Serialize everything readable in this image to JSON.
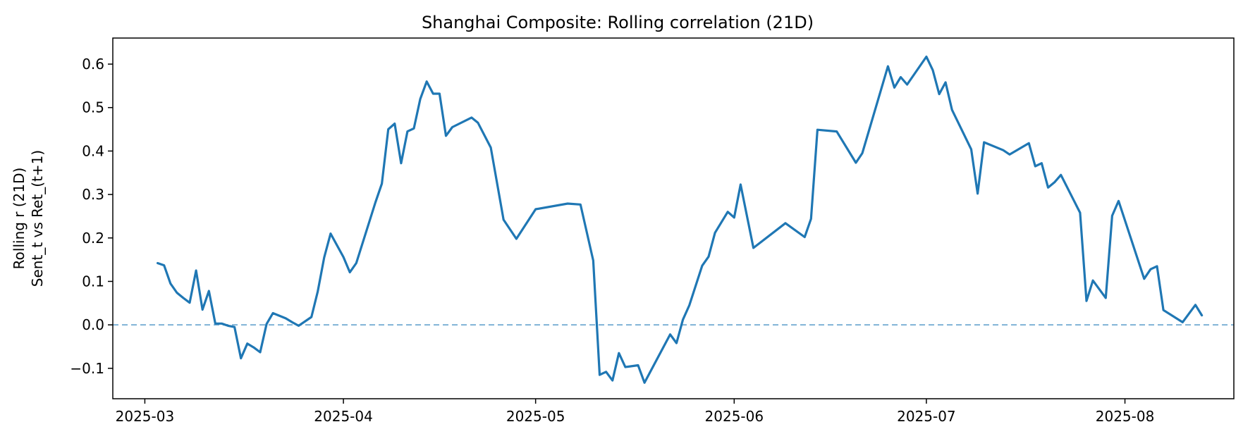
{
  "chart_data": {
    "type": "line",
    "title": "Shanghai Composite: Rolling correlation (21D)",
    "xlabel": "",
    "ylabel_lines": [
      "Rolling r (21D)",
      "Sent_t vs Ret_(t+1)"
    ],
    "xlim": [
      "2025-02-24",
      "2025-08-18"
    ],
    "ylim": [
      -0.17,
      0.66
    ],
    "x_ticks": [
      {
        "date": "2025-03-01",
        "label": "2025-03"
      },
      {
        "date": "2025-04-01",
        "label": "2025-04"
      },
      {
        "date": "2025-05-01",
        "label": "2025-05"
      },
      {
        "date": "2025-06-01",
        "label": "2025-06"
      },
      {
        "date": "2025-07-01",
        "label": "2025-07"
      },
      {
        "date": "2025-08-01",
        "label": "2025-08"
      }
    ],
    "y_ticks": [
      {
        "value": -0.1,
        "label": "−0.1"
      },
      {
        "value": 0.0,
        "label": "0.0"
      },
      {
        "value": 0.1,
        "label": "0.1"
      },
      {
        "value": 0.2,
        "label": "0.2"
      },
      {
        "value": 0.3,
        "label": "0.3"
      },
      {
        "value": 0.4,
        "label": "0.4"
      },
      {
        "value": 0.5,
        "label": "0.5"
      },
      {
        "value": 0.6,
        "label": "0.6"
      }
    ],
    "grid": false,
    "reference_line": {
      "y": 0.0,
      "style": "dashed",
      "color": "#7fb2d6"
    },
    "line_color": "#1f77b4",
    "series": [
      {
        "points": [
          [
            "2025-03-03",
            0.142
          ],
          [
            "2025-03-04",
            0.137
          ],
          [
            "2025-03-05",
            0.095
          ],
          [
            "2025-03-06",
            0.074
          ],
          [
            "2025-03-07",
            0.062
          ],
          [
            "2025-03-08",
            0.051
          ],
          [
            "2025-03-09",
            0.125
          ],
          [
            "2025-03-10",
            0.035
          ],
          [
            "2025-03-11",
            0.078
          ],
          [
            "2025-03-12",
            0.003
          ],
          [
            "2025-03-13",
            0.003
          ],
          [
            "2025-03-14",
            -0.002
          ],
          [
            "2025-03-15",
            -0.005
          ],
          [
            "2025-03-16",
            -0.077
          ],
          [
            "2025-03-17",
            -0.043
          ],
          [
            "2025-03-18",
            -0.052
          ],
          [
            "2025-03-19",
            -0.063
          ],
          [
            "2025-03-20",
            0.002
          ],
          [
            "2025-03-21",
            0.027
          ],
          [
            "2025-03-23",
            0.015
          ],
          [
            "2025-03-24",
            0.006
          ],
          [
            "2025-03-25",
            -0.002
          ],
          [
            "2025-03-27",
            0.018
          ],
          [
            "2025-03-28",
            0.077
          ],
          [
            "2025-03-29",
            0.155
          ],
          [
            "2025-03-30",
            0.21
          ],
          [
            "2025-04-01",
            0.156
          ],
          [
            "2025-04-02",
            0.121
          ],
          [
            "2025-04-03",
            0.142
          ],
          [
            "2025-04-06",
            0.282
          ],
          [
            "2025-04-07",
            0.325
          ],
          [
            "2025-04-08",
            0.45
          ],
          [
            "2025-04-09",
            0.463
          ],
          [
            "2025-04-10",
            0.372
          ],
          [
            "2025-04-11",
            0.445
          ],
          [
            "2025-04-12",
            0.452
          ],
          [
            "2025-04-13",
            0.52
          ],
          [
            "2025-04-14",
            0.56
          ],
          [
            "2025-04-15",
            0.532
          ],
          [
            "2025-04-16",
            0.532
          ],
          [
            "2025-04-17",
            0.435
          ],
          [
            "2025-04-18",
            0.455
          ],
          [
            "2025-04-21",
            0.477
          ],
          [
            "2025-04-22",
            0.465
          ],
          [
            "2025-04-24",
            0.408
          ],
          [
            "2025-04-26",
            0.242
          ],
          [
            "2025-04-28",
            0.198
          ],
          [
            "2025-05-01",
            0.266
          ],
          [
            "2025-05-06",
            0.279
          ],
          [
            "2025-05-08",
            0.277
          ],
          [
            "2025-05-10",
            0.148
          ],
          [
            "2025-05-11",
            -0.115
          ],
          [
            "2025-05-12",
            -0.108
          ],
          [
            "2025-05-13",
            -0.128
          ],
          [
            "2025-05-14",
            -0.065
          ],
          [
            "2025-05-15",
            -0.097
          ],
          [
            "2025-05-17",
            -0.093
          ],
          [
            "2025-05-18",
            -0.133
          ],
          [
            "2025-05-22",
            -0.022
          ],
          [
            "2025-05-23",
            -0.042
          ],
          [
            "2025-05-24",
            0.012
          ],
          [
            "2025-05-25",
            0.045
          ],
          [
            "2025-05-27",
            0.136
          ],
          [
            "2025-05-28",
            0.157
          ],
          [
            "2025-05-29",
            0.212
          ],
          [
            "2025-05-31",
            0.26
          ],
          [
            "2025-06-01",
            0.247
          ],
          [
            "2025-06-02",
            0.323
          ],
          [
            "2025-06-04",
            0.177
          ],
          [
            "2025-06-09",
            0.234
          ],
          [
            "2025-06-12",
            0.202
          ],
          [
            "2025-06-13",
            0.244
          ],
          [
            "2025-06-14",
            0.449
          ],
          [
            "2025-06-17",
            0.445
          ],
          [
            "2025-06-20",
            0.373
          ],
          [
            "2025-06-21",
            0.395
          ],
          [
            "2025-06-25",
            0.595
          ],
          [
            "2025-06-26",
            0.546
          ],
          [
            "2025-06-27",
            0.57
          ],
          [
            "2025-06-28",
            0.553
          ],
          [
            "2025-07-01",
            0.617
          ],
          [
            "2025-07-02",
            0.586
          ],
          [
            "2025-07-03",
            0.531
          ],
          [
            "2025-07-04",
            0.558
          ],
          [
            "2025-07-05",
            0.495
          ],
          [
            "2025-07-08",
            0.404
          ],
          [
            "2025-07-09",
            0.302
          ],
          [
            "2025-07-10",
            0.42
          ],
          [
            "2025-07-13",
            0.402
          ],
          [
            "2025-07-14",
            0.392
          ],
          [
            "2025-07-17",
            0.418
          ],
          [
            "2025-07-18",
            0.365
          ],
          [
            "2025-07-19",
            0.372
          ],
          [
            "2025-07-20",
            0.316
          ],
          [
            "2025-07-21",
            0.328
          ],
          [
            "2025-07-22",
            0.345
          ],
          [
            "2025-07-25",
            0.258
          ],
          [
            "2025-07-26",
            0.055
          ],
          [
            "2025-07-27",
            0.102
          ],
          [
            "2025-07-29",
            0.062
          ],
          [
            "2025-07-30",
            0.251
          ],
          [
            "2025-07-31",
            0.285
          ],
          [
            "2025-08-04",
            0.106
          ],
          [
            "2025-08-05",
            0.128
          ],
          [
            "2025-08-06",
            0.135
          ],
          [
            "2025-08-07",
            0.034
          ],
          [
            "2025-08-10",
            0.006
          ],
          [
            "2025-08-12",
            0.046
          ],
          [
            "2025-08-13",
            0.022
          ]
        ]
      }
    ]
  }
}
